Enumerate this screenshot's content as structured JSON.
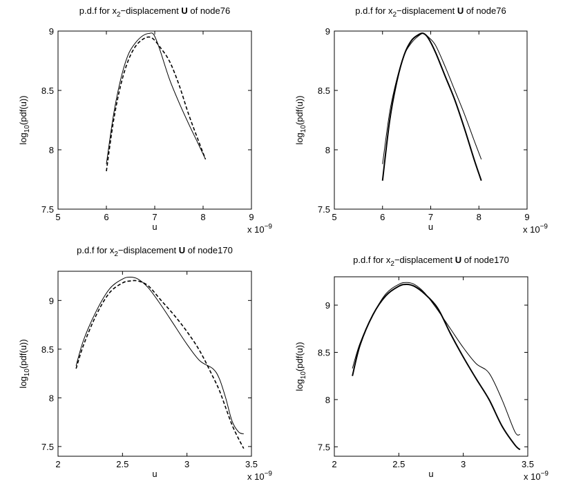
{
  "figure": {
    "background": "#ffffff",
    "line_color": "#000000"
  },
  "chart_data": [
    {
      "type": "line",
      "title": {
        "pre": "p.d.f for x",
        "sub": "2",
        "mid": "−displacement ",
        "bold": "U",
        "post": " of node76"
      },
      "xlabel": "u",
      "ylabel": {
        "pre": "log",
        "sub": "10",
        "post": "(pdf(u))"
      },
      "x_multiplier": {
        "pre": "x 10",
        "sup": "−9"
      },
      "xlim": [
        5,
        9
      ],
      "ylim": [
        7.5,
        9
      ],
      "xticks": [
        "5",
        "6",
        "7",
        "8",
        "9"
      ],
      "yticks": [
        "7.5",
        "8",
        "8.5",
        "9"
      ],
      "grid": false,
      "series": [
        {
          "style": "solid",
          "width": 1,
          "x": [
            6.0,
            6.15,
            6.3,
            6.45,
            6.6,
            6.75,
            6.88,
            6.98,
            7.1,
            7.3,
            7.5,
            7.7,
            7.9,
            8.05
          ],
          "y": [
            7.88,
            8.3,
            8.6,
            8.8,
            8.9,
            8.96,
            8.98,
            8.97,
            8.85,
            8.6,
            8.4,
            8.22,
            8.05,
            7.92
          ]
        },
        {
          "style": "dashed",
          "width": 1.6,
          "x": [
            6.0,
            6.15,
            6.3,
            6.45,
            6.6,
            6.75,
            6.88,
            6.98,
            7.1,
            7.3,
            7.5,
            7.7,
            7.9,
            8.05
          ],
          "y": [
            7.82,
            8.25,
            8.55,
            8.75,
            8.87,
            8.93,
            8.95,
            8.93,
            8.87,
            8.75,
            8.55,
            8.3,
            8.08,
            7.92
          ]
        }
      ]
    },
    {
      "type": "line",
      "title": {
        "pre": "p.d.f for x",
        "sub": "2",
        "mid": "−displacement ",
        "bold": "U",
        "post": " of node76"
      },
      "xlabel": "u",
      "ylabel": {
        "pre": "log",
        "sub": "10",
        "post": "(pdf(u))"
      },
      "x_multiplier": {
        "pre": "x 10",
        "sup": "−9"
      },
      "xlim": [
        5,
        9
      ],
      "ylim": [
        7.5,
        9
      ],
      "xticks": [
        "5",
        "6",
        "7",
        "8",
        "9"
      ],
      "yticks": [
        "7.5",
        "8",
        "8.5",
        "9"
      ],
      "grid": false,
      "series": [
        {
          "style": "solid",
          "width": 1,
          "x": [
            6.0,
            6.15,
            6.3,
            6.45,
            6.6,
            6.75,
            6.85,
            6.95,
            7.1,
            7.3,
            7.5,
            7.7,
            7.9,
            8.05
          ],
          "y": [
            7.88,
            8.32,
            8.6,
            8.8,
            8.9,
            8.96,
            8.98,
            8.95,
            8.88,
            8.7,
            8.5,
            8.3,
            8.08,
            7.92
          ]
        },
        {
          "style": "solid",
          "width": 2,
          "x": [
            6.0,
            6.15,
            6.3,
            6.45,
            6.6,
            6.75,
            6.85,
            6.95,
            7.1,
            7.3,
            7.5,
            7.7,
            7.9,
            8.05
          ],
          "y": [
            7.74,
            8.25,
            8.58,
            8.8,
            8.92,
            8.97,
            8.98,
            8.94,
            8.82,
            8.62,
            8.42,
            8.18,
            7.92,
            7.74
          ]
        }
      ]
    },
    {
      "type": "line",
      "title": {
        "pre": "p.d.f for x",
        "sub": "2",
        "mid": "−displacement ",
        "bold": "U",
        "post": " of node170"
      },
      "xlabel": "u",
      "ylabel": {
        "pre": "log",
        "sub": "10",
        "post": "(pdf(u))"
      },
      "x_multiplier": {
        "pre": "x 10",
        "sup": "−9"
      },
      "xlim": [
        2,
        3.5
      ],
      "ylim": [
        7.4,
        9.3
      ],
      "xticks": [
        "2",
        "2.5",
        "3",
        "3.5"
      ],
      "yticks": [
        "7.5",
        "8",
        "8.5",
        "9"
      ],
      "grid": false,
      "series": [
        {
          "style": "solid",
          "width": 1,
          "x": [
            2.14,
            2.2,
            2.3,
            2.4,
            2.5,
            2.56,
            2.62,
            2.7,
            2.8,
            2.9,
            3.0,
            3.1,
            3.2,
            3.25,
            3.3,
            3.35,
            3.4,
            3.44
          ],
          "y": [
            8.33,
            8.6,
            8.9,
            9.12,
            9.22,
            9.24,
            9.22,
            9.13,
            8.95,
            8.75,
            8.55,
            8.38,
            8.3,
            8.2,
            8.0,
            7.76,
            7.65,
            7.63
          ]
        },
        {
          "style": "dashed",
          "width": 1.6,
          "x": [
            2.14,
            2.2,
            2.3,
            2.4,
            2.5,
            2.56,
            2.62,
            2.7,
            2.8,
            2.9,
            3.0,
            3.1,
            3.2,
            3.25,
            3.3,
            3.35,
            3.4,
            3.44
          ],
          "y": [
            8.3,
            8.55,
            8.86,
            9.08,
            9.18,
            9.2,
            9.2,
            9.15,
            9.0,
            8.85,
            8.68,
            8.48,
            8.22,
            8.08,
            7.9,
            7.72,
            7.58,
            7.48
          ]
        }
      ]
    },
    {
      "type": "line",
      "title": {
        "pre": "p.d.f for x",
        "sub": "2",
        "mid": "−displacement ",
        "bold": "U",
        "post": " of node170"
      },
      "xlabel": "u",
      "ylabel": {
        "pre": "log",
        "sub": "10",
        "post": "(pdf(u))"
      },
      "x_multiplier": {
        "pre": "x 10",
        "sup": "−9"
      },
      "xlim": [
        2,
        3.5
      ],
      "ylim": [
        7.4,
        9.3
      ],
      "xticks": [
        "2",
        "2.5",
        "3",
        "3.5"
      ],
      "yticks": [
        "7.5",
        "8",
        "8.5",
        "9"
      ],
      "grid": false,
      "series": [
        {
          "style": "solid",
          "width": 1,
          "x": [
            2.14,
            2.2,
            2.3,
            2.4,
            2.5,
            2.56,
            2.62,
            2.7,
            2.8,
            2.9,
            3.0,
            3.1,
            3.2,
            3.3,
            3.4,
            3.44
          ],
          "y": [
            8.33,
            8.6,
            8.9,
            9.12,
            9.22,
            9.24,
            9.22,
            9.13,
            8.95,
            8.75,
            8.55,
            8.38,
            8.28,
            8.0,
            7.66,
            7.63
          ]
        },
        {
          "style": "solid",
          "width": 2,
          "x": [
            2.14,
            2.2,
            2.3,
            2.4,
            2.5,
            2.56,
            2.62,
            2.7,
            2.8,
            2.9,
            3.0,
            3.1,
            3.2,
            3.3,
            3.4,
            3.44
          ],
          "y": [
            8.25,
            8.58,
            8.9,
            9.1,
            9.2,
            9.22,
            9.2,
            9.12,
            8.97,
            8.7,
            8.45,
            8.22,
            8.0,
            7.72,
            7.52,
            7.47
          ]
        }
      ]
    }
  ]
}
